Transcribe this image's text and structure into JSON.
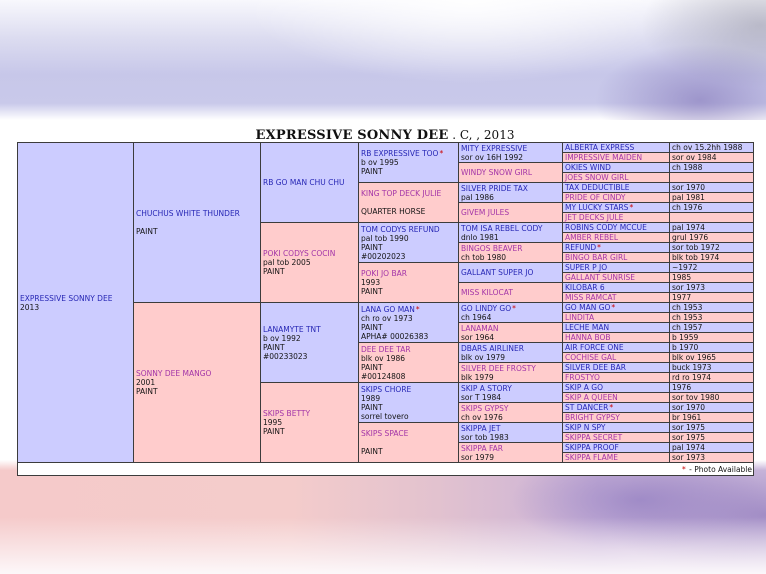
{
  "page": {
    "title_name": "EXPRESSIVE SONNY DEE",
    "title_suffix": " . C, , 2013"
  },
  "legend": {
    "marker": "*",
    "footer_text": " - Photo Available"
  },
  "colors": {
    "sire_bg": "#ccccff",
    "dam_bg": "#ffcccc",
    "sire_link": "#2727b5",
    "dam_link": "#a335a8",
    "photo_marker": "#cc0000"
  },
  "gen1": [
    {
      "name": "EXPRESSIVE SONNY DEE",
      "sex": "s",
      "photo": false,
      "details": [
        "2013"
      ]
    }
  ],
  "gen2": [
    {
      "name": "CHUCHUS WHITE THUNDER",
      "sex": "s",
      "photo": false,
      "details": [
        "",
        "PAINT"
      ]
    },
    {
      "name": "SONNY DEE MANGO",
      "sex": "d",
      "photo": false,
      "details": [
        "2001",
        "PAINT"
      ]
    }
  ],
  "gen3": [
    {
      "name": "RB GO MAN CHU CHU",
      "sex": "s",
      "photo": false,
      "details": []
    },
    {
      "name": "POKI CODYS COCIN",
      "sex": "d",
      "photo": false,
      "details": [
        "pal tob 2005",
        "PAINT"
      ]
    },
    {
      "name": "LANAMYTE TNT",
      "sex": "s",
      "photo": false,
      "details": [
        "b ov 1992",
        "PAINT",
        "#00233023"
      ]
    },
    {
      "name": "SKIPS BETTY",
      "sex": "d",
      "photo": false,
      "details": [
        "1995",
        "PAINT"
      ]
    }
  ],
  "gen4": [
    {
      "name": "RB EXPRESSIVE TOO",
      "sex": "s",
      "photo": true,
      "details": [
        "b ov 1995",
        "PAINT"
      ]
    },
    {
      "name": "KING TOP DECK JULIE",
      "sex": "d",
      "photo": false,
      "details": [
        "",
        "QUARTER HORSE"
      ]
    },
    {
      "name": "TOM CODYS REFUND",
      "sex": "s",
      "photo": false,
      "details": [
        "pal tob 1990",
        "PAINT",
        "#00202023"
      ]
    },
    {
      "name": "POKI JO BAR",
      "sex": "d",
      "photo": false,
      "details": [
        "1993",
        "PAINT"
      ]
    },
    {
      "name": "LANA GO MAN",
      "sex": "s",
      "photo": true,
      "details": [
        "ch ro ov 1973",
        "PAINT",
        "APHA# 00026383"
      ]
    },
    {
      "name": "DEE DEE TAR",
      "sex": "d",
      "photo": false,
      "details": [
        "blk ov 1986",
        "PAINT",
        "#00124808"
      ]
    },
    {
      "name": "SKIPS CHORE",
      "sex": "s",
      "photo": false,
      "details": [
        "1989",
        "PAINT",
        "sorrel tovero"
      ]
    },
    {
      "name": "SKIPS SPACE",
      "sex": "d",
      "photo": false,
      "details": [
        "",
        "PAINT"
      ]
    }
  ],
  "gen5": [
    {
      "name": "MITY EXPRESSIVE",
      "sex": "s",
      "photo": false,
      "details": [
        "sor ov 16H 1992"
      ]
    },
    {
      "name": "WINDY SNOW GIRL",
      "sex": "d",
      "photo": false,
      "details": []
    },
    {
      "name": "SILVER PRIDE TAX",
      "sex": "s",
      "photo": false,
      "details": [
        "pal 1986"
      ]
    },
    {
      "name": "GIVEM JULES",
      "sex": "d",
      "photo": false,
      "details": []
    },
    {
      "name": "TOM ISA REBEL CODY",
      "sex": "s",
      "photo": false,
      "details": [
        "dnlo 1981"
      ]
    },
    {
      "name": "BINGOS BEAVER",
      "sex": "d",
      "photo": false,
      "details": [
        "ch tob 1980"
      ]
    },
    {
      "name": "GALLANT SUPER JO",
      "sex": "s",
      "photo": false,
      "details": []
    },
    {
      "name": "MISS KILOCAT",
      "sex": "d",
      "photo": false,
      "details": []
    },
    {
      "name": "GO LINDY GO",
      "sex": "s",
      "photo": true,
      "details": [
        "ch 1964"
      ]
    },
    {
      "name": "LANAMAN",
      "sex": "d",
      "photo": false,
      "details": [
        "sor 1964"
      ]
    },
    {
      "name": "DBARS AIRLINER",
      "sex": "s",
      "photo": false,
      "details": [
        "blk ov 1979"
      ]
    },
    {
      "name": "SILVER DEE FROSTY",
      "sex": "d",
      "photo": false,
      "details": [
        "blk 1979"
      ]
    },
    {
      "name": "SKIP A STORY",
      "sex": "s",
      "photo": false,
      "details": [
        "sor T 1984"
      ]
    },
    {
      "name": "SKIPS GYPSY",
      "sex": "d",
      "photo": false,
      "details": [
        "ch ov 1976"
      ]
    },
    {
      "name": "SKIPPA JET",
      "sex": "s",
      "photo": false,
      "details": [
        "sor tob 1983"
      ]
    },
    {
      "name": "SKIPPA FAR",
      "sex": "d",
      "photo": false,
      "details": [
        "sor 1979"
      ]
    }
  ],
  "gen6": [
    {
      "name": "ALBERTA EXPRESS",
      "sex": "s",
      "photo": false,
      "date": "ch ov 15.2hh 1988"
    },
    {
      "name": "IMPRESSIVE MAIDEN",
      "sex": "d",
      "photo": false,
      "date": "sor ov 1984"
    },
    {
      "name": "OKIES WIND",
      "sex": "s",
      "photo": false,
      "date": "ch 1988"
    },
    {
      "name": "JOES SNOW GIRL",
      "sex": "d",
      "photo": false,
      "date": ""
    },
    {
      "name": "TAX DEDUCTIBLE",
      "sex": "s",
      "photo": false,
      "date": "sor 1970"
    },
    {
      "name": "PRIDE OF CINDY",
      "sex": "d",
      "photo": false,
      "date": "pal 1981"
    },
    {
      "name": "MY LUCKY STARS",
      "sex": "s",
      "photo": true,
      "date": "ch 1976"
    },
    {
      "name": "JET DECKS JULE",
      "sex": "d",
      "photo": false,
      "date": ""
    },
    {
      "name": "ROBINS CODY MCCUE",
      "sex": "s",
      "photo": false,
      "date": "pal 1974"
    },
    {
      "name": "AMBER REBEL",
      "sex": "d",
      "photo": false,
      "date": "grul 1976"
    },
    {
      "name": "REFUND",
      "sex": "s",
      "photo": true,
      "date": "sor tob 1972"
    },
    {
      "name": "BINGO BAR GIRL",
      "sex": "d",
      "photo": false,
      "date": "blk tob 1974"
    },
    {
      "name": "SUPER P JO",
      "sex": "s",
      "photo": false,
      "date": "~1972"
    },
    {
      "name": "GALLANT SUNRISE",
      "sex": "d",
      "photo": false,
      "date": "1985"
    },
    {
      "name": "KILOBAR 6",
      "sex": "s",
      "photo": false,
      "date": "sor 1973"
    },
    {
      "name": "MISS RAMCAT",
      "sex": "d",
      "photo": false,
      "date": "1977"
    },
    {
      "name": "GO MAN GO",
      "sex": "s",
      "photo": true,
      "date": "ch 1953"
    },
    {
      "name": "LINDITA",
      "sex": "d",
      "photo": false,
      "date": "ch 1953"
    },
    {
      "name": "LECHE MAN",
      "sex": "s",
      "photo": false,
      "date": "ch 1957"
    },
    {
      "name": "HANNA BOB",
      "sex": "d",
      "photo": false,
      "date": "b 1959"
    },
    {
      "name": "AIR FORCE ONE",
      "sex": "s",
      "photo": false,
      "date": "b 1970"
    },
    {
      "name": "COCHISE GAL",
      "sex": "d",
      "photo": false,
      "date": "blk ov 1965"
    },
    {
      "name": "SILVER DEE BAR",
      "sex": "s",
      "photo": false,
      "date": "buck 1973"
    },
    {
      "name": "FROSTYO",
      "sex": "d",
      "photo": false,
      "date": "rd ro 1974"
    },
    {
      "name": "SKIP A GO",
      "sex": "s",
      "photo": false,
      "date": "1976"
    },
    {
      "name": "SKIP A QUEEN",
      "sex": "d",
      "photo": false,
      "date": "sor tov 1980"
    },
    {
      "name": "ST DANCER",
      "sex": "s",
      "photo": true,
      "date": "sor 1970"
    },
    {
      "name": "BRIGHT GYPSY",
      "sex": "d",
      "photo": false,
      "date": "br 1961"
    },
    {
      "name": "SKIP N SPY",
      "sex": "s",
      "photo": false,
      "date": "sor 1975"
    },
    {
      "name": "SKIPPA SECRET",
      "sex": "d",
      "photo": false,
      "date": "sor 1975"
    },
    {
      "name": "SKIPPA PROOF",
      "sex": "s",
      "photo": false,
      "date": "pal 1974"
    },
    {
      "name": "SKIPPA FLAME",
      "sex": "d",
      "photo": false,
      "date": "sor 1973"
    }
  ]
}
